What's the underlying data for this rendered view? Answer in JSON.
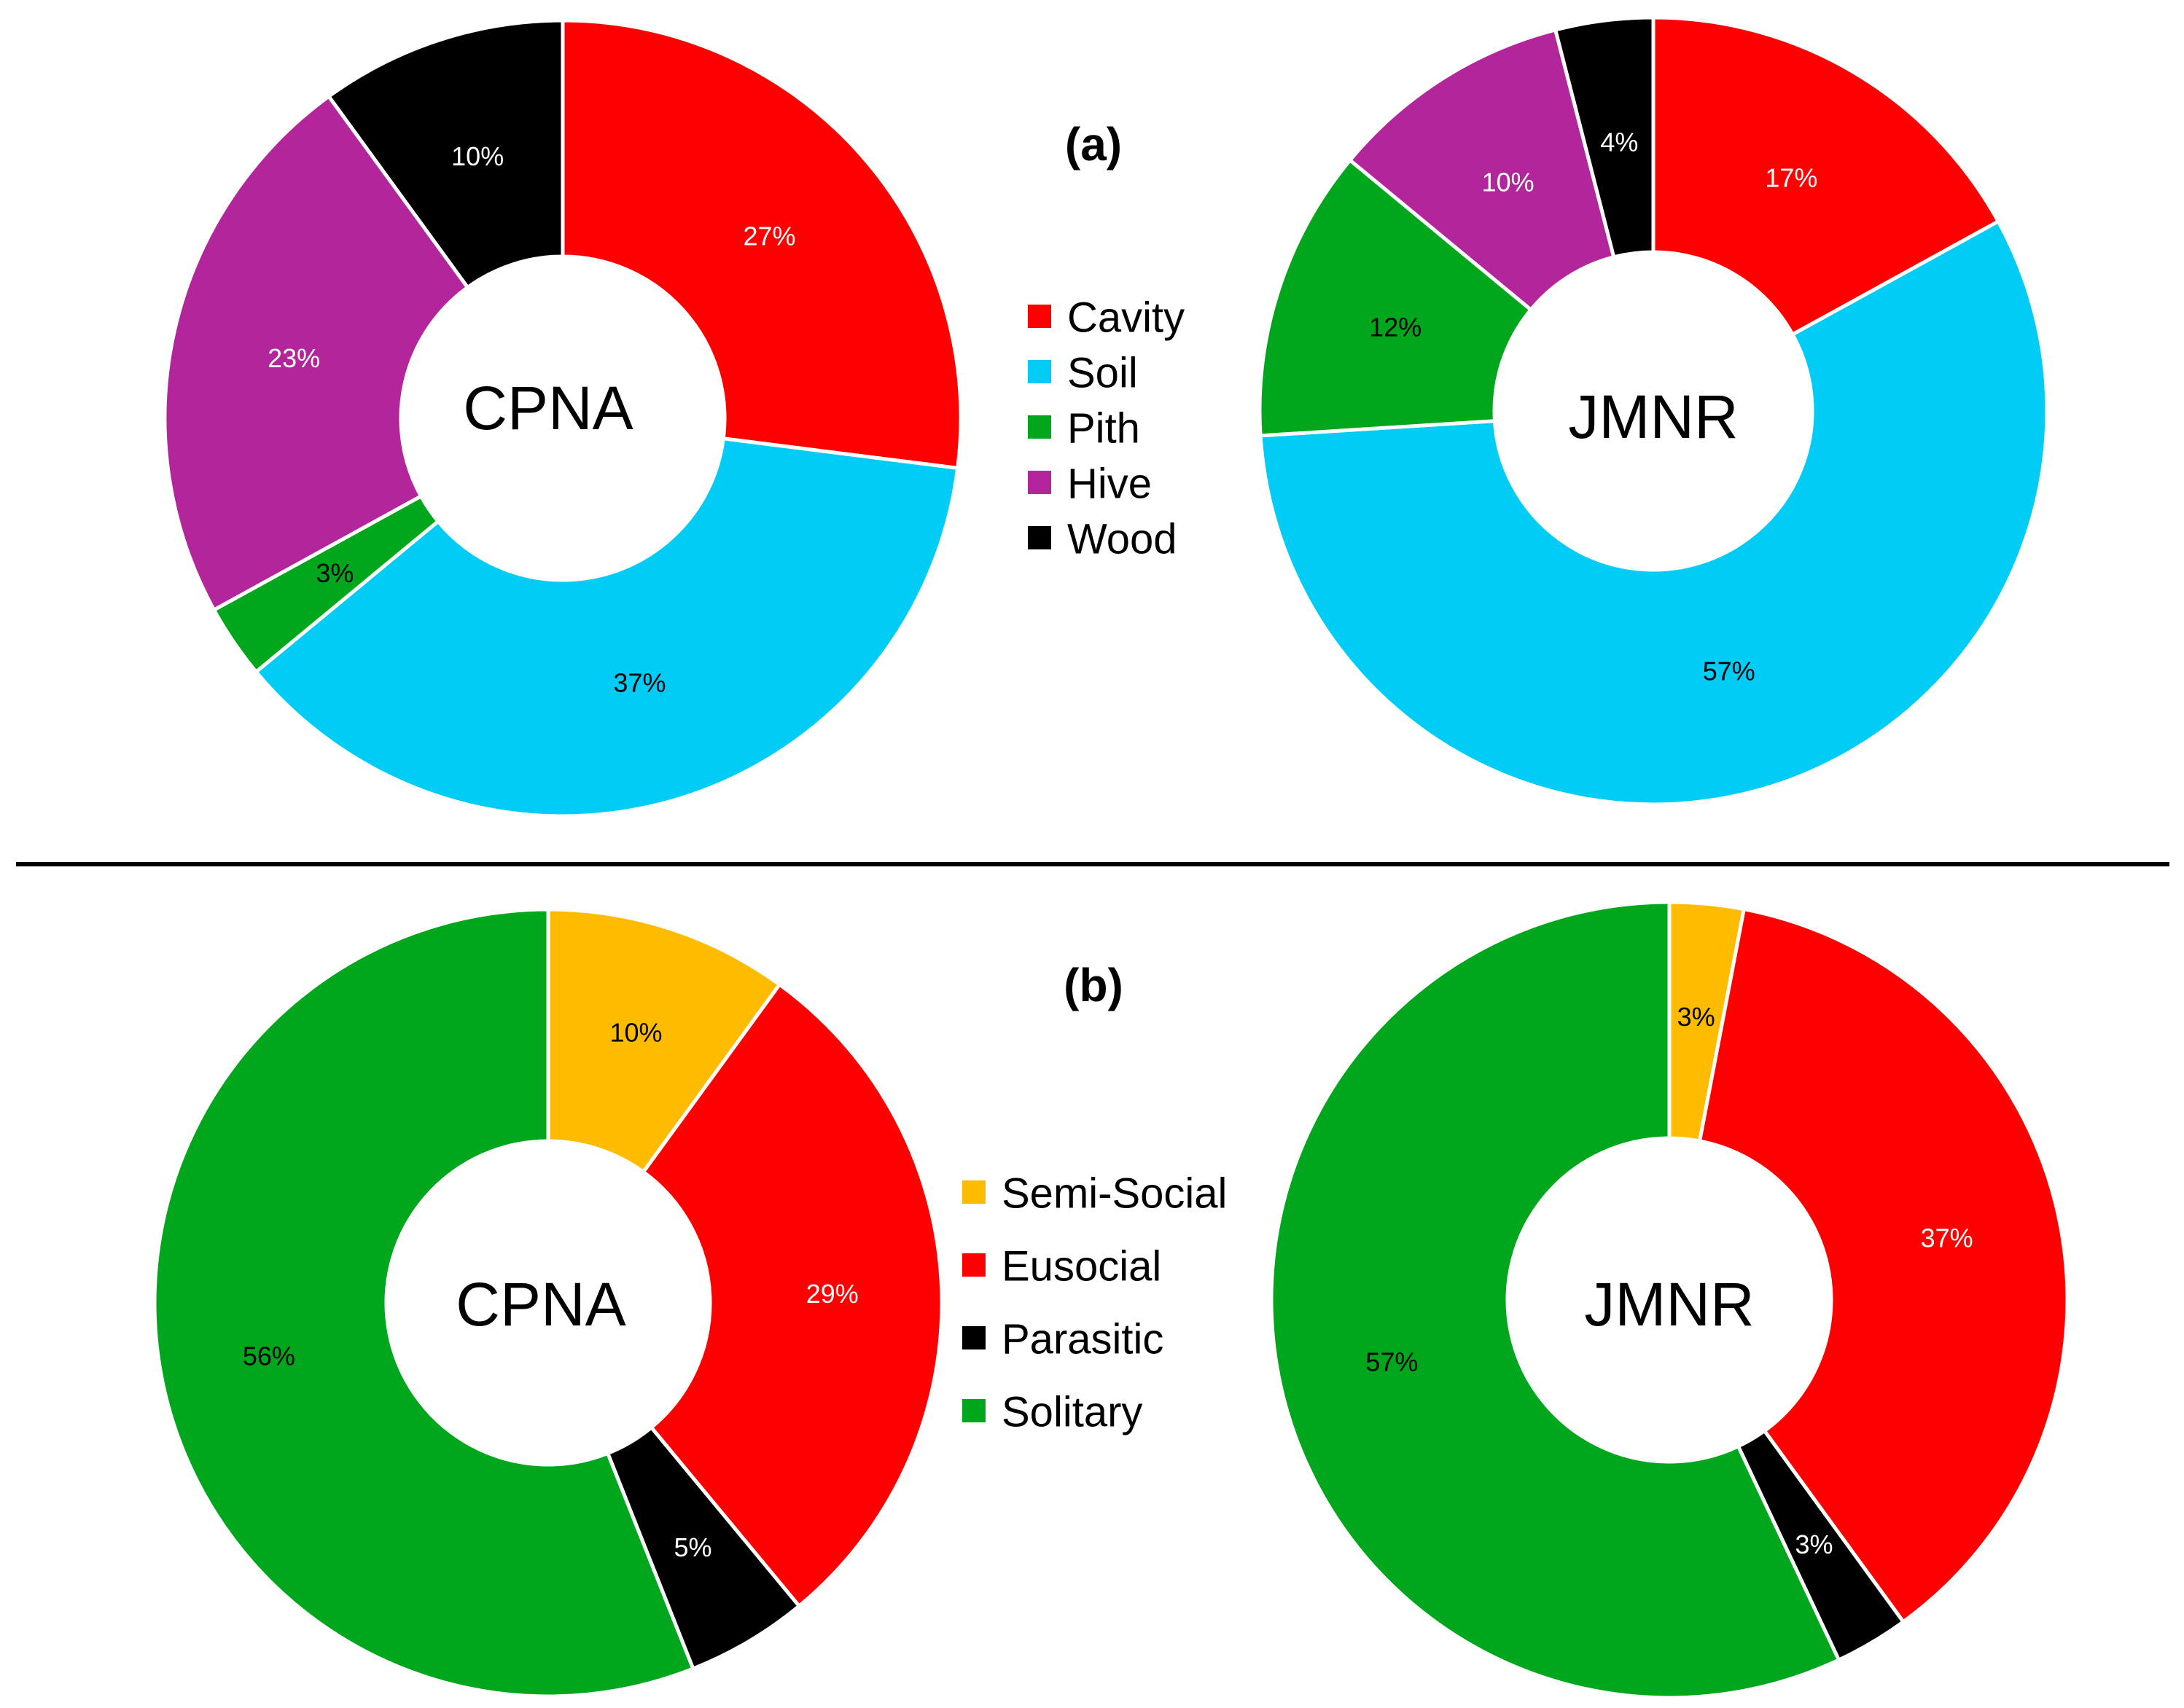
{
  "chart_data": [
    {
      "type": "pie",
      "panel": "(a)",
      "title": "CPNA",
      "categories": [
        "Cavity",
        "Soil",
        "Pith",
        "Hive",
        "Wood"
      ],
      "values": [
        27,
        37,
        3,
        23,
        10
      ],
      "labels": [
        "27%",
        "37%",
        "3%",
        "23%",
        "10%"
      ]
    },
    {
      "type": "pie",
      "panel": "(a)",
      "title": "JMNR",
      "categories": [
        "Cavity",
        "Soil",
        "Pith",
        "Hive",
        "Wood"
      ],
      "values": [
        17,
        57,
        12,
        10,
        4
      ],
      "labels": [
        "17%",
        "57%",
        "12%",
        "10%",
        "4%"
      ]
    },
    {
      "type": "pie",
      "panel": "(b)",
      "title": "CPNA",
      "categories": [
        "Semi-Social",
        "Eusocial",
        "Parasitic",
        "Solitary"
      ],
      "values": [
        10,
        29,
        5,
        56
      ],
      "labels": [
        "10%",
        "29%",
        "5%",
        "56%"
      ]
    },
    {
      "type": "pie",
      "panel": "(b)",
      "title": "JMNR",
      "categories": [
        "Semi-Social",
        "Eusocial",
        "Parasitic",
        "Solitary"
      ],
      "values": [
        3,
        37,
        3,
        57
      ],
      "labels": [
        "3%",
        "37%",
        "3%",
        "57%"
      ]
    }
  ],
  "panels": [
    {
      "label": "(a)",
      "legend": [
        {
          "name": "Cavity",
          "color": "#ff0000"
        },
        {
          "name": "Soil",
          "color": "#00ccf5"
        },
        {
          "name": "Pith",
          "color": "#00a61b"
        },
        {
          "name": "Hive",
          "color": "#b3259a"
        },
        {
          "name": "Wood",
          "color": "#000000"
        }
      ],
      "label_text_colors": [
        "#ffffff",
        "#000000",
        "#000000",
        "#ffffff",
        "#ffffff"
      ]
    },
    {
      "label": "(b)",
      "legend": [
        {
          "name": "Semi-Social",
          "color": "#ffbb00"
        },
        {
          "name": "Eusocial",
          "color": "#ff0000"
        },
        {
          "name": "Parasitic",
          "color": "#000000"
        },
        {
          "name": "Solitary",
          "color": "#00a61b"
        }
      ],
      "label_text_colors": [
        "#000000",
        "#ffffff",
        "#ffffff",
        "#000000"
      ]
    }
  ]
}
